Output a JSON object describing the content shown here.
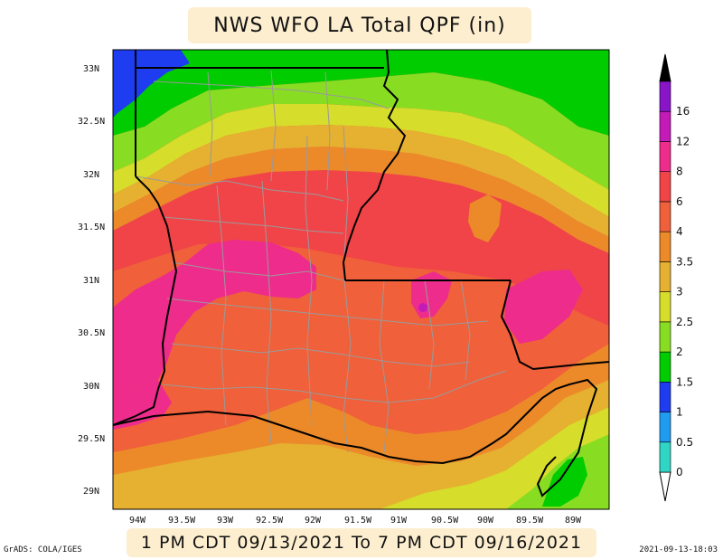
{
  "title": "NWS WFO LA Total QPF (in)",
  "valid_period": "1 PM CDT 09/13/2021 To 7 PM CDT 09/16/2021",
  "credit": "GrADS: COLA/IGES",
  "timestamp": "2021-09-13-18:03",
  "lat_labels": [
    "33N",
    "32.5N",
    "32N",
    "31.5N",
    "31N",
    "30.5N",
    "30N",
    "29.5N",
    "29N"
  ],
  "lon_labels": [
    "94W",
    "93.5W",
    "93W",
    "92.5W",
    "92W",
    "91.5W",
    "91W",
    "90.5W",
    "90W",
    "89.5W",
    "89W"
  ],
  "legend": {
    "labels": [
      "0",
      "0.5",
      "1",
      "1.5",
      "2",
      "2.5",
      "3",
      "3.5",
      "4",
      "6",
      "8",
      "12",
      "16"
    ],
    "colors": [
      "#2fd6c6",
      "#1f9cf0",
      "#1e3cf0",
      "#00cc00",
      "#88dd22",
      "#d6dd2a",
      "#e6b030",
      "#ec8a2a",
      "#f0603a",
      "#f04448",
      "#ee2c8c",
      "#c41ab8",
      "#8a14c8"
    ]
  },
  "map_colors": {
    "lt1": "#1e3cf0",
    "v15": "#00cc00",
    "v2": "#88dd22",
    "v25": "#d6dd2a",
    "v3": "#e6b030",
    "v35": "#ec8a2a",
    "v4": "#f0603a",
    "v6": "#f04448",
    "v8": "#ee2c8c",
    "v12": "#c41ab8"
  }
}
